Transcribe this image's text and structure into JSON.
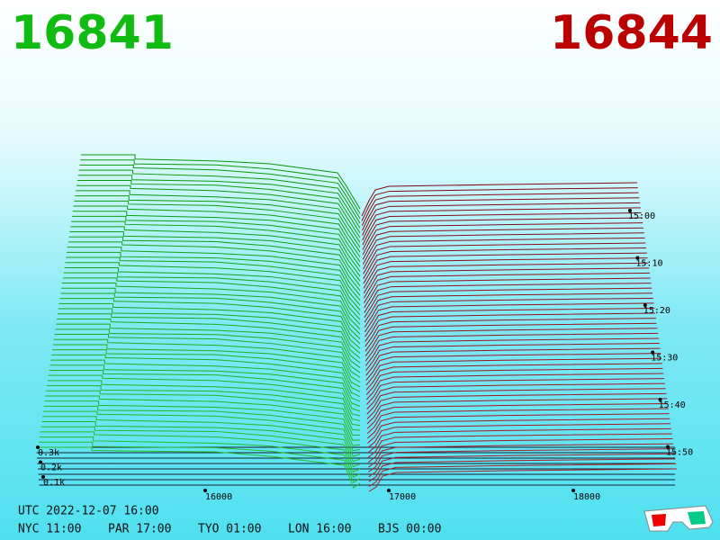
{
  "header": {
    "bid": "16841",
    "ask": "16844"
  },
  "price_axis": [
    "16000",
    "17000",
    "18000"
  ],
  "time_axis": [
    "15:00",
    "15:10",
    "15:20",
    "15:30",
    "15:40",
    "15:50"
  ],
  "depth_axis": [
    "0.3k",
    "0.2k",
    "0.1k"
  ],
  "footer": {
    "utc": "UTC 2022-12-07 16:00",
    "zones": [
      "NYC 11:00",
      "PAR 17:00",
      "TYO 01:00",
      "LON 16:00",
      "BJS 00:00"
    ]
  }
}
